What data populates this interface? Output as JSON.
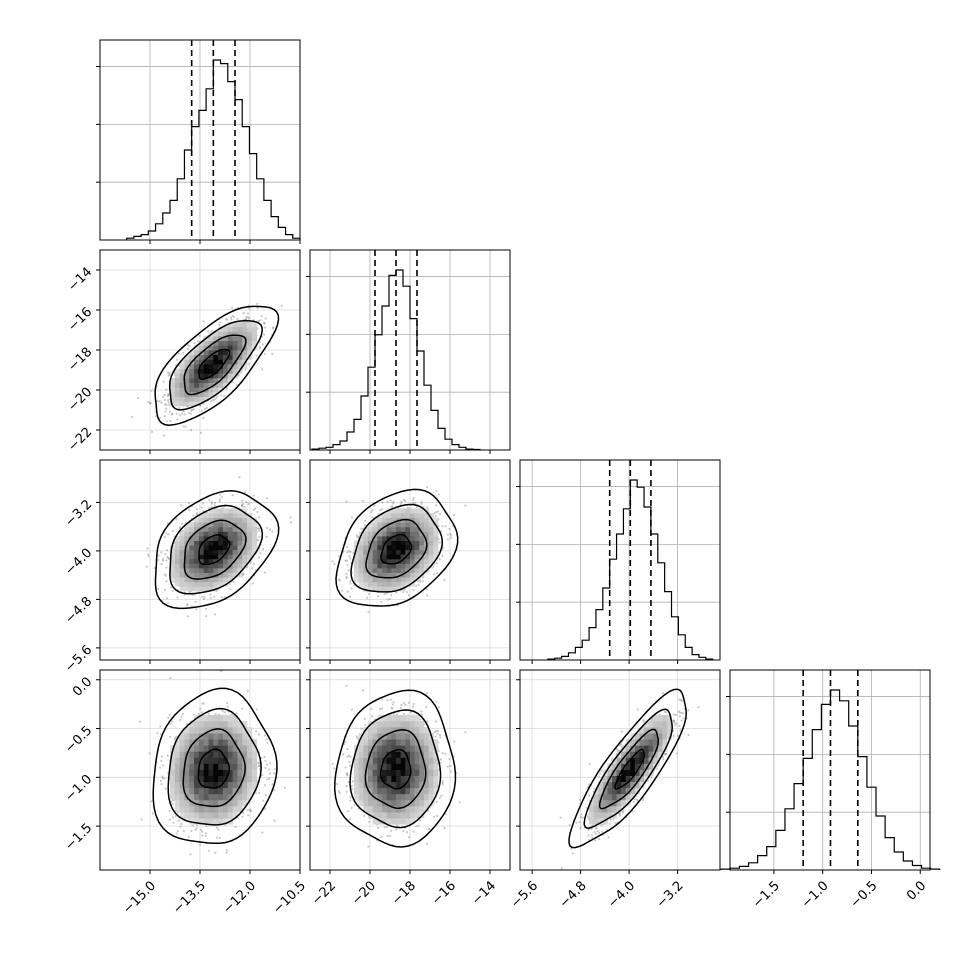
{
  "chart_data": {
    "type": "corner",
    "grid": true,
    "parameters": [
      {
        "range": [
          -16.5,
          -10.5
        ],
        "ticks": [
          -15.0,
          -13.5,
          -12.0,
          -10.5
        ],
        "tick_labels": [
          "−15.0",
          "−13.5",
          "−12.0",
          "−10.5"
        ],
        "mean": -13.1,
        "sd": 0.65,
        "quantiles": [
          -13.75,
          -13.1,
          -12.45
        ]
      },
      {
        "range": [
          -23,
          -13
        ],
        "ticks": [
          -22,
          -20,
          -18,
          -16,
          -14
        ],
        "tick_labels": [
          "−22",
          "−20",
          "−18",
          "−16",
          "−14"
        ],
        "mean": -18.7,
        "sd": 1.05,
        "quantiles": [
          -19.75,
          -18.7,
          -17.65
        ]
      },
      {
        "range": [
          -5.8,
          -2.5
        ],
        "ticks": [
          -5.6,
          -4.8,
          -4.0,
          -3.2
        ],
        "tick_labels": [
          "−5.6",
          "−4.8",
          "−4.0",
          "−3.2"
        ],
        "mean": -3.98,
        "sd": 0.34,
        "quantiles": [
          -4.32,
          -3.98,
          -3.64
        ]
      },
      {
        "range": [
          -1.95,
          0.1
        ],
        "ticks": [
          -1.5,
          -1.0,
          -0.5,
          0.0
        ],
        "tick_labels": [
          "−1.5",
          "−1.0",
          "−0.5",
          "0.0"
        ],
        "mean": -0.92,
        "sd": 0.28,
        "quantiles": [
          -1.2,
          -0.92,
          -0.64
        ]
      }
    ],
    "correlations": [
      {
        "pair": [
          0,
          1
        ],
        "rho": 0.7
      },
      {
        "pair": [
          0,
          2
        ],
        "rho": 0.35
      },
      {
        "pair": [
          0,
          3
        ],
        "rho": 0.1
      },
      {
        "pair": [
          1,
          2
        ],
        "rho": 0.3
      },
      {
        "pair": [
          1,
          3
        ],
        "rho": 0.05
      },
      {
        "pair": [
          2,
          3
        ],
        "rho": 0.85
      }
    ],
    "histograms": [
      [
        1,
        2,
        3,
        5,
        9,
        15,
        22,
        34,
        50,
        63,
        72,
        84,
        100,
        98,
        88,
        78,
        63,
        48,
        34,
        22,
        13,
        7,
        3,
        1
      ],
      [
        0.5,
        1,
        1.5,
        3,
        5,
        10,
        17,
        30,
        46,
        64,
        80,
        97,
        100,
        91,
        73,
        55,
        36,
        22,
        12,
        6,
        3,
        1.5,
        0.5,
        0.3
      ],
      [
        0.5,
        1,
        2,
        4,
        7,
        11,
        18,
        28,
        40,
        56,
        70,
        84,
        100,
        96,
        85,
        70,
        54,
        38,
        24,
        14,
        7,
        3,
        1.5,
        0.5
      ],
      [
        0.5,
        1,
        2,
        4,
        8,
        13,
        22,
        34,
        48,
        62,
        78,
        92,
        100,
        94,
        80,
        63,
        46,
        30,
        18,
        10,
        5,
        2.5,
        1,
        0.5
      ]
    ],
    "contour_levels_sigma": [
      0.5,
      1.0,
      1.5,
      2.0
    ],
    "line_style": {
      "histogram": "#000000",
      "quantile": "dashed #000000",
      "points": "#777777"
    }
  }
}
